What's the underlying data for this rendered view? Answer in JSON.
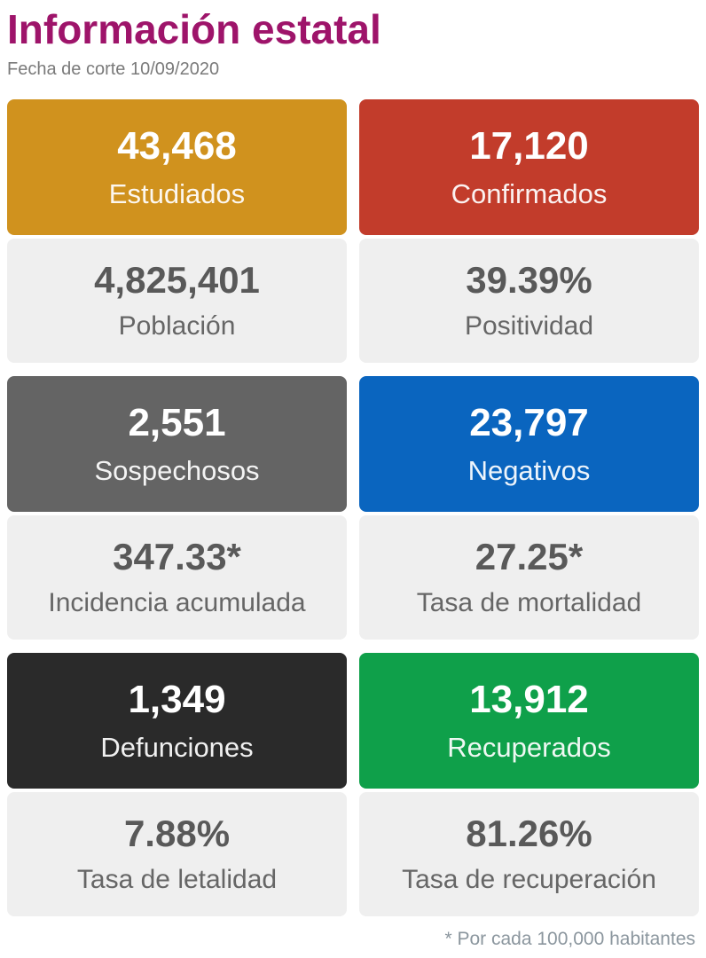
{
  "header": {
    "title": "Información estatal",
    "subtitle": "Fecha de corte 10/09/2020"
  },
  "cards": [
    {
      "id": "estudiados",
      "color": "#D0921E",
      "value": "43,468",
      "label": "Estudiados",
      "sub_value": "4,825,401",
      "sub_label": "Población"
    },
    {
      "id": "confirmados",
      "color": "#C23C2B",
      "value": "17,120",
      "label": "Confirmados",
      "sub_value": "39.39%",
      "sub_label": "Positividad"
    },
    {
      "id": "sospechosos",
      "color": "#646464",
      "value": "2,551",
      "label": "Sospechosos",
      "sub_value": "347.33*",
      "sub_label": "Incidencia acumulada"
    },
    {
      "id": "negativos",
      "color": "#0A65BF",
      "value": "23,797",
      "label": "Negativos",
      "sub_value": "27.25*",
      "sub_label": "Tasa de mortalidad"
    },
    {
      "id": "defunciones",
      "color": "#2A2A2A",
      "value": "1,349",
      "label": "Defunciones",
      "sub_value": "7.88%",
      "sub_label": "Tasa de letalidad"
    },
    {
      "id": "recuperados",
      "color": "#0FA04A",
      "value": "13,912",
      "label": "Recuperados",
      "sub_value": "81.26%",
      "sub_label": "Tasa de recuperación"
    }
  ],
  "footer": {
    "note": "* Por cada 100,000 habitantes"
  },
  "colors": {
    "title": "#9E146A",
    "subtitle": "#7A7A7A",
    "sub_panel_bg": "#EFEFEF",
    "sub_panel_text": "#595959",
    "footnote": "#8B969E"
  }
}
